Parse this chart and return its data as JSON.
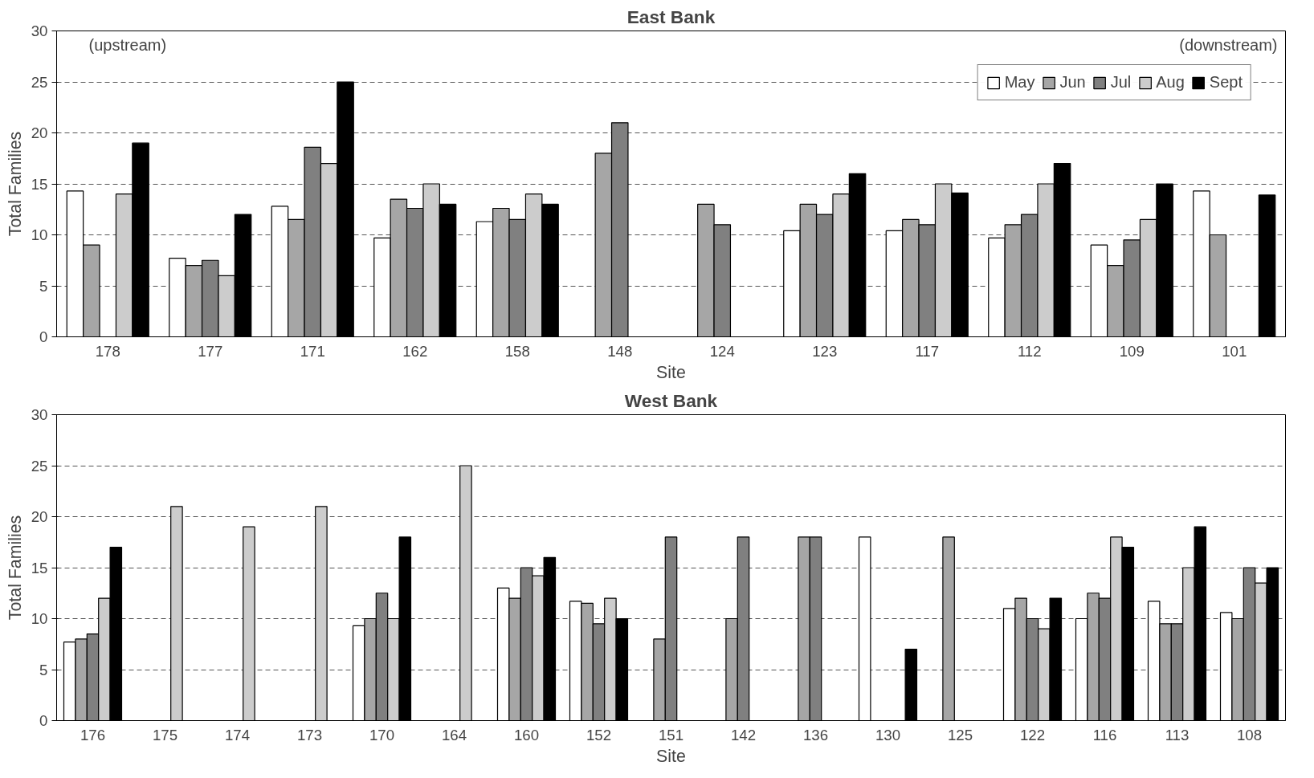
{
  "chart_data": [
    {
      "type": "bar",
      "title": "East Bank",
      "xlabel": "Site",
      "ylabel": "Total Families",
      "annotations": [
        "(upstream)",
        "(downstream)"
      ],
      "categories": [
        "178",
        "177",
        "171",
        "162",
        "158",
        "148",
        "124",
        "123",
        "117",
        "112",
        "109",
        "101"
      ],
      "series": [
        {
          "name": "May",
          "color": "#ffffff",
          "values": [
            14.3,
            7.7,
            12.8,
            9.7,
            11.3,
            null,
            null,
            10.4,
            10.4,
            9.7,
            9,
            14.3
          ]
        },
        {
          "name": "Jun",
          "color": "#a6a6a6",
          "values": [
            9,
            7,
            11.5,
            13.5,
            12.6,
            18,
            13,
            13,
            11.5,
            11,
            7,
            10
          ]
        },
        {
          "name": "Jul",
          "color": "#808080",
          "values": [
            null,
            7.5,
            18.6,
            12.6,
            11.5,
            21,
            11,
            12,
            11,
            12,
            9.5,
            null
          ]
        },
        {
          "name": "Aug",
          "color": "#cccccc",
          "values": [
            14,
            6,
            17,
            15,
            14,
            null,
            null,
            14,
            15,
            15,
            11.5,
            null
          ]
        },
        {
          "name": "Sept",
          "color": "#000000",
          "values": [
            19,
            12,
            25,
            13,
            13,
            null,
            null,
            16,
            14.1,
            17,
            15,
            13.9
          ]
        }
      ],
      "ylim": [
        0,
        30
      ],
      "yticks": [
        0,
        5,
        10,
        15,
        20,
        25,
        30
      ],
      "grid": "y",
      "legend": "top right"
    },
    {
      "type": "bar",
      "title": "West Bank",
      "xlabel": "Site",
      "ylabel": "Total Families",
      "categories": [
        "176",
        "175",
        "174",
        "173",
        "170",
        "164",
        "160",
        "152",
        "151",
        "142",
        "136",
        "130",
        "125",
        "122",
        "116",
        "113",
        "108"
      ],
      "series": [
        {
          "color": "#ffffff",
          "values": [
            7.7,
            null,
            null,
            null,
            9.3,
            null,
            13,
            11.7,
            null,
            null,
            null,
            18,
            null,
            11,
            10,
            11.7,
            10.6
          ]
        },
        {
          "color": "#a6a6a6",
          "values": [
            8,
            null,
            null,
            null,
            10,
            null,
            12,
            11.5,
            8,
            10,
            18,
            null,
            18,
            12,
            12.5,
            9.5,
            10
          ]
        },
        {
          "color": "#808080",
          "values": [
            8.5,
            null,
            null,
            null,
            12.5,
            null,
            15,
            9.5,
            18,
            18,
            18,
            null,
            null,
            10,
            12,
            9.5,
            15
          ]
        },
        {
          "color": "#cccccc",
          "values": [
            12,
            21,
            19,
            21,
            10,
            25,
            14.2,
            12,
            null,
            null,
            null,
            null,
            null,
            9,
            18,
            15,
            13.5
          ]
        },
        {
          "color": "#000000",
          "values": [
            17,
            null,
            null,
            null,
            18,
            null,
            16,
            10,
            null,
            null,
            null,
            7,
            null,
            12,
            17,
            19,
            15
          ]
        }
      ],
      "ylim": [
        0,
        30
      ],
      "yticks": [
        0,
        5,
        10,
        15,
        20,
        25,
        30
      ],
      "grid": "y"
    }
  ]
}
